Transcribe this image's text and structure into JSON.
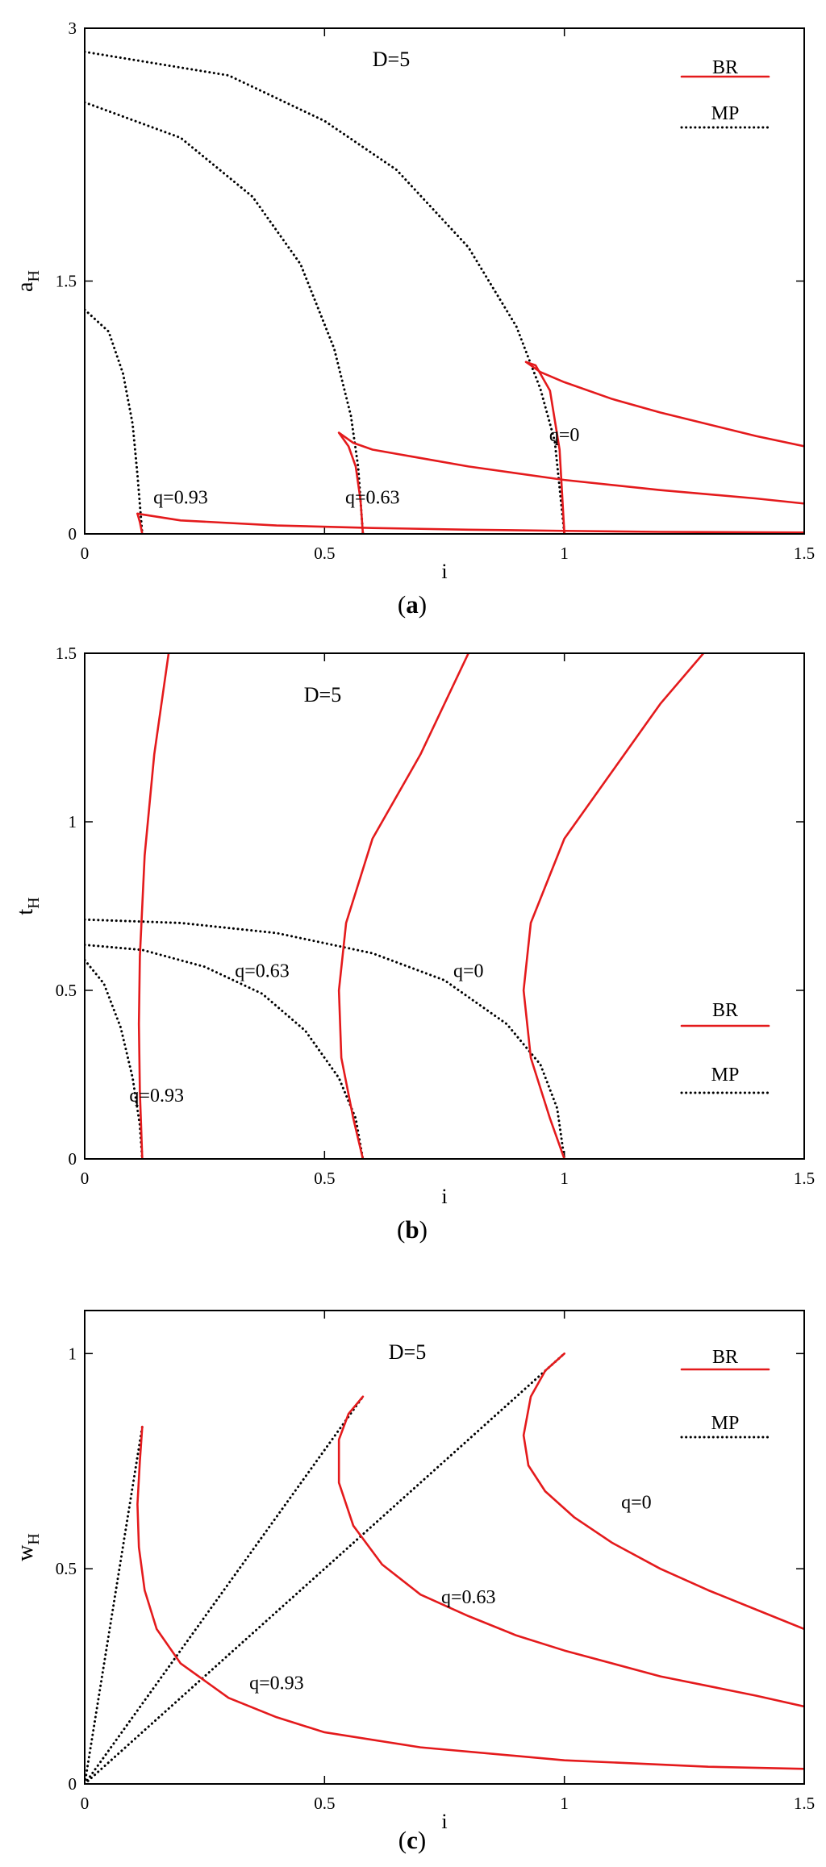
{
  "figure": {
    "panels": [
      {
        "caption_open": "(",
        "caption_letter": "a",
        "caption_close": ")",
        "annotation": "D=5"
      },
      {
        "caption_open": "(",
        "caption_letter": "b",
        "caption_close": ")",
        "annotation": "D=5"
      },
      {
        "caption_open": "(",
        "caption_letter": "c",
        "caption_close": ")",
        "annotation": "D=5"
      }
    ]
  },
  "colors": {
    "br": "#e41a1c",
    "mp": "#000000",
    "axis": "#000000"
  },
  "chart_data": [
    {
      "type": "line",
      "panel": "a",
      "xlabel": "i",
      "ylabel": "a",
      "ylabel_sub": "H",
      "xlim": [
        0,
        1.5
      ],
      "ylim": [
        0,
        3
      ],
      "xticks": [
        0,
        0.5,
        1,
        1.5
      ],
      "xtick_labels": [
        "0",
        "0.5",
        "1",
        "1.5"
      ],
      "yticks": [
        0,
        1.5,
        3
      ],
      "ytick_labels": [
        "0",
        "1.5",
        "3"
      ],
      "legend": {
        "position": "top-right",
        "entries": [
          {
            "label": "BR",
            "style": "solid"
          },
          {
            "label": "MP",
            "style": "dotted"
          }
        ]
      },
      "annotations": [
        {
          "text": "q=0",
          "x": 1.0,
          "y": 0.55
        },
        {
          "text": "q=0.63",
          "x": 0.6,
          "y": 0.18
        },
        {
          "text": "q=0.93",
          "x": 0.2,
          "y": 0.18
        }
      ],
      "series": [
        {
          "legend": "MP",
          "style": "dotted",
          "x": [
            0.0,
            0.3,
            0.5,
            0.65,
            0.8,
            0.9,
            0.95,
            0.98,
            1.0
          ],
          "y": [
            2.86,
            2.72,
            2.45,
            2.16,
            1.7,
            1.23,
            0.86,
            0.55,
            0.0
          ]
        },
        {
          "legend": "MP",
          "style": "dotted",
          "x": [
            0.0,
            0.2,
            0.35,
            0.45,
            0.52,
            0.555,
            0.57,
            0.58
          ],
          "y": [
            2.56,
            2.35,
            2.0,
            1.6,
            1.1,
            0.7,
            0.4,
            0.0
          ]
        },
        {
          "legend": "MP",
          "style": "dotted",
          "x": [
            0.0,
            0.05,
            0.08,
            0.1,
            0.11,
            0.12
          ],
          "y": [
            1.33,
            1.2,
            0.95,
            0.65,
            0.35,
            0.0
          ]
        },
        {
          "legend": "BR",
          "style": "solid",
          "x": [
            1.0,
            0.99,
            0.97,
            0.94,
            0.92
          ],
          "y": [
            0.0,
            0.5,
            0.85,
            1.0,
            1.02
          ]
        },
        {
          "legend": "BR",
          "style": "solid",
          "x": [
            0.92,
            0.95,
            1.0,
            1.1,
            1.2,
            1.3,
            1.4,
            1.5
          ],
          "y": [
            1.02,
            0.96,
            0.9,
            0.8,
            0.72,
            0.65,
            0.58,
            0.52
          ]
        },
        {
          "legend": "BR",
          "style": "solid",
          "x": [
            0.58,
            0.575,
            0.565,
            0.55,
            0.53
          ],
          "y": [
            0.0,
            0.2,
            0.4,
            0.52,
            0.6
          ]
        },
        {
          "legend": "BR",
          "style": "solid",
          "x": [
            0.53,
            0.56,
            0.6,
            0.8,
            1.0,
            1.2,
            1.4,
            1.5
          ],
          "y": [
            0.6,
            0.54,
            0.5,
            0.4,
            0.32,
            0.26,
            0.21,
            0.18
          ]
        },
        {
          "legend": "BR",
          "style": "solid",
          "x": [
            0.12,
            0.115,
            0.11
          ],
          "y": [
            0.0,
            0.07,
            0.12
          ]
        },
        {
          "legend": "BR",
          "style": "solid",
          "x": [
            0.11,
            0.2,
            0.4,
            0.6,
            0.8,
            1.0,
            1.2,
            1.5
          ],
          "y": [
            0.12,
            0.08,
            0.05,
            0.035,
            0.025,
            0.018,
            0.012,
            0.008
          ]
        }
      ]
    },
    {
      "type": "line",
      "panel": "b",
      "xlabel": "i",
      "ylabel": "t",
      "ylabel_sub": "H",
      "xlim": [
        0,
        1.5
      ],
      "ylim": [
        0,
        1.5
      ],
      "xticks": [
        0,
        0.5,
        1,
        1.5
      ],
      "xtick_labels": [
        "0",
        "0.5",
        "1",
        "1.5"
      ],
      "yticks": [
        0,
        0.5,
        1,
        1.5
      ],
      "ytick_labels": [
        "0",
        "0.5",
        "1",
        "1.5"
      ],
      "legend": {
        "position": "bottom-right",
        "entries": [
          {
            "label": "BR",
            "style": "solid"
          },
          {
            "label": "MP",
            "style": "dotted"
          }
        ]
      },
      "annotations": [
        {
          "text": "q=0",
          "x": 0.8,
          "y": 0.54
        },
        {
          "text": "q=0.63",
          "x": 0.37,
          "y": 0.54
        },
        {
          "text": "q=0.93",
          "x": 0.15,
          "y": 0.17
        }
      ],
      "series": [
        {
          "legend": "MP",
          "style": "dotted",
          "x": [
            0.0,
            0.2,
            0.4,
            0.6,
            0.75,
            0.88,
            0.95,
            0.985,
            1.0
          ],
          "y": [
            0.71,
            0.7,
            0.67,
            0.61,
            0.53,
            0.4,
            0.28,
            0.15,
            0.0
          ]
        },
        {
          "legend": "MP",
          "style": "dotted",
          "x": [
            0.0,
            0.12,
            0.25,
            0.37,
            0.46,
            0.53,
            0.565,
            0.58
          ],
          "y": [
            0.635,
            0.62,
            0.57,
            0.49,
            0.38,
            0.24,
            0.12,
            0.0
          ]
        },
        {
          "legend": "MP",
          "style": "dotted",
          "x": [
            0.0,
            0.04,
            0.075,
            0.1,
            0.115,
            0.12
          ],
          "y": [
            0.59,
            0.52,
            0.39,
            0.24,
            0.1,
            0.0
          ]
        },
        {
          "legend": "BR",
          "style": "solid",
          "x": [
            1.0,
            0.97,
            0.93,
            0.915,
            0.93,
            1.0,
            1.1,
            1.2,
            1.29
          ],
          "y": [
            0.0,
            0.12,
            0.3,
            0.5,
            0.7,
            0.95,
            1.15,
            1.35,
            1.5
          ]
        },
        {
          "legend": "BR",
          "style": "solid",
          "x": [
            0.58,
            0.56,
            0.535,
            0.53,
            0.545,
            0.6,
            0.7,
            0.8
          ],
          "y": [
            0.0,
            0.12,
            0.3,
            0.5,
            0.7,
            0.95,
            1.2,
            1.5
          ]
        },
        {
          "legend": "BR",
          "style": "solid",
          "x": [
            0.12,
            0.115,
            0.113,
            0.115,
            0.125,
            0.145,
            0.175
          ],
          "y": [
            0.0,
            0.2,
            0.4,
            0.6,
            0.9,
            1.2,
            1.5
          ]
        }
      ]
    },
    {
      "type": "line",
      "panel": "c",
      "xlabel": "i",
      "ylabel": "w",
      "ylabel_sub": "H",
      "xlim": [
        0,
        1.5
      ],
      "ylim": [
        0,
        1.1
      ],
      "xticks": [
        0,
        0.5,
        1,
        1.5
      ],
      "xtick_labels": [
        "0",
        "0.5",
        "1",
        "1.5"
      ],
      "yticks": [
        0,
        0.5,
        1
      ],
      "ytick_labels": [
        "0",
        "0.5",
        "1"
      ],
      "legend": {
        "position": "top-right",
        "entries": [
          {
            "label": "BR",
            "style": "solid"
          },
          {
            "label": "MP",
            "style": "dotted"
          }
        ]
      },
      "annotations": [
        {
          "text": "q=0",
          "x": 1.15,
          "y": 0.64
        },
        {
          "text": "q=0.63",
          "x": 0.8,
          "y": 0.42
        },
        {
          "text": "q=0.93",
          "x": 0.4,
          "y": 0.22
        }
      ],
      "series": [
        {
          "legend": "MP",
          "style": "dotted",
          "x": [
            0.0,
            1.0
          ],
          "y": [
            0.0,
            1.0
          ]
        },
        {
          "legend": "MP",
          "style": "dotted",
          "x": [
            0.0,
            0.58
          ],
          "y": [
            0.0,
            0.9
          ]
        },
        {
          "legend": "MP",
          "style": "dotted",
          "x": [
            0.0,
            0.12
          ],
          "y": [
            0.0,
            0.83
          ]
        },
        {
          "legend": "BR",
          "style": "solid",
          "x": [
            1.0,
            0.96,
            0.93,
            0.915,
            0.925,
            0.96,
            1.02,
            1.1,
            1.2,
            1.3,
            1.4,
            1.5
          ],
          "y": [
            1.0,
            0.96,
            0.9,
            0.81,
            0.74,
            0.68,
            0.62,
            0.56,
            0.5,
            0.45,
            0.405,
            0.36
          ]
        },
        {
          "legend": "BR",
          "style": "solid",
          "x": [
            0.58,
            0.55,
            0.53,
            0.53,
            0.56,
            0.62,
            0.7,
            0.8,
            0.9,
            1.0,
            1.2,
            1.4,
            1.5
          ],
          "y": [
            0.9,
            0.86,
            0.8,
            0.7,
            0.6,
            0.51,
            0.44,
            0.39,
            0.345,
            0.31,
            0.25,
            0.205,
            0.18
          ]
        },
        {
          "legend": "BR",
          "style": "solid",
          "x": [
            0.12,
            0.115,
            0.11,
            0.113,
            0.125,
            0.15,
            0.2,
            0.3,
            0.4,
            0.5,
            0.7,
            1.0,
            1.3,
            1.5
          ],
          "y": [
            0.83,
            0.75,
            0.65,
            0.55,
            0.45,
            0.36,
            0.28,
            0.2,
            0.155,
            0.12,
            0.085,
            0.055,
            0.04,
            0.035
          ]
        }
      ]
    }
  ]
}
